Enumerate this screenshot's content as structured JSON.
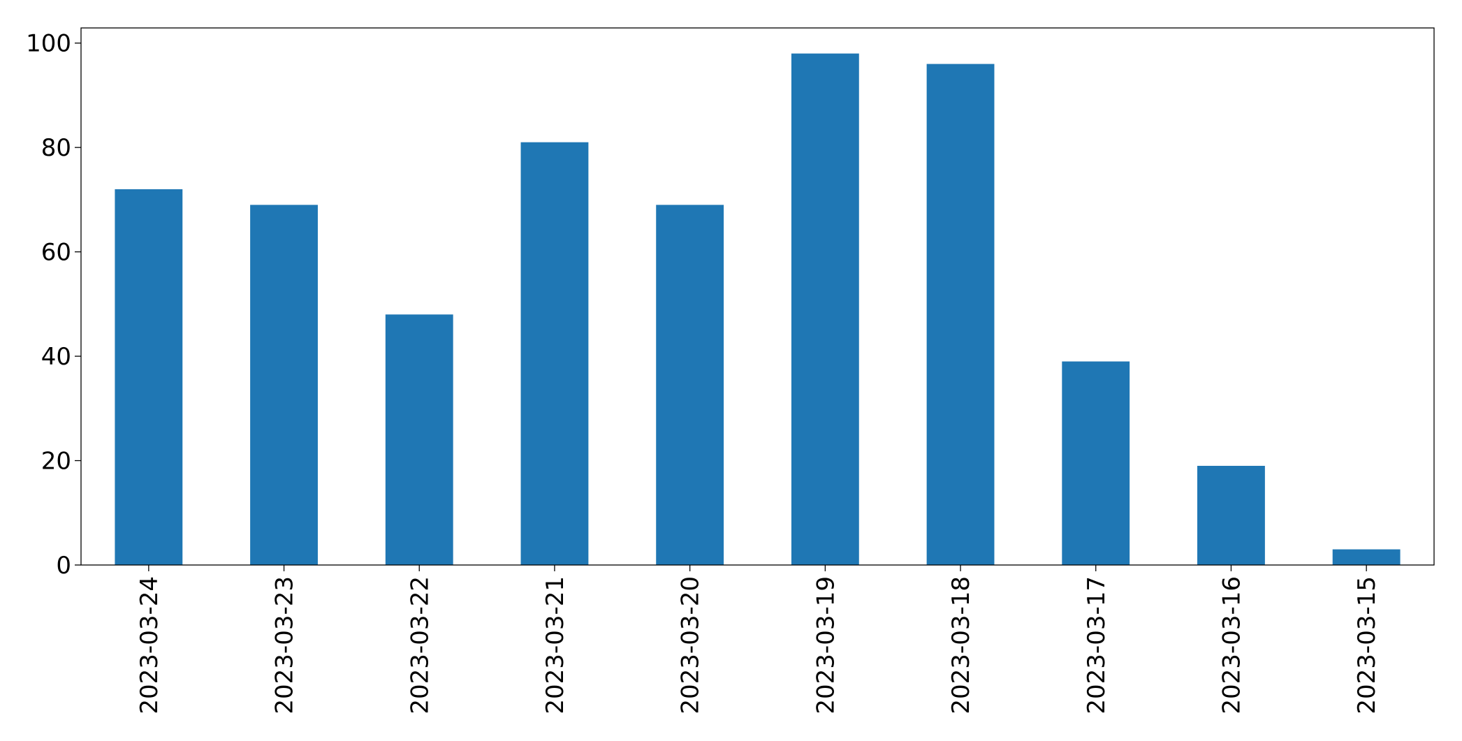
{
  "chart_data": {
    "type": "bar",
    "categories": [
      "2023-03-24",
      "2023-03-23",
      "2023-03-22",
      "2023-03-21",
      "2023-03-20",
      "2023-03-19",
      "2023-03-18",
      "2023-03-17",
      "2023-03-16",
      "2023-03-15"
    ],
    "values": [
      72,
      69,
      48,
      81,
      69,
      98,
      96,
      39,
      19,
      3
    ],
    "color": "#1f77b4",
    "ylim": [
      0,
      102.9
    ],
    "yticks": [
      0,
      20,
      40,
      60,
      80,
      100
    ],
    "grid": false
  }
}
